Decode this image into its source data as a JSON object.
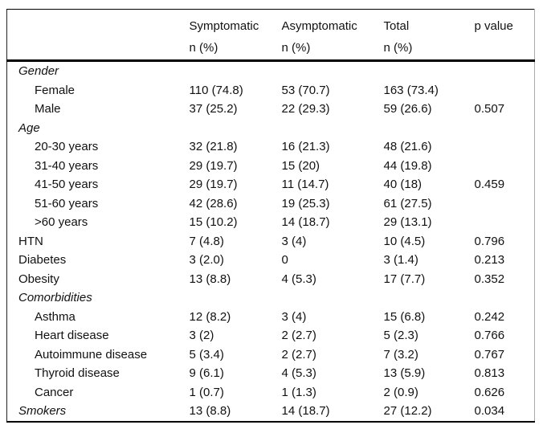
{
  "colors": {
    "background": "#ffffff",
    "text": "#111111",
    "rule": "#000000"
  },
  "table": {
    "columns": [
      {
        "line1": "",
        "line2": ""
      },
      {
        "line1": "Symptomatic",
        "line2": "n (%)"
      },
      {
        "line1": "Asymptomatic",
        "line2": "n (%)"
      },
      {
        "line1": "Total",
        "line2": "n (%)"
      },
      {
        "line1": "p value",
        "line2": ""
      }
    ],
    "rows": [
      {
        "type": "section",
        "cells": [
          "Gender",
          "",
          "",
          "",
          ""
        ]
      },
      {
        "type": "item",
        "cells": [
          "Female",
          "110 (74.8)",
          "53 (70.7)",
          "163 (73.4)",
          ""
        ]
      },
      {
        "type": "item",
        "cells": [
          "Male",
          "37 (25.2)",
          "22 (29.3)",
          "59 (26.6)",
          "0.507"
        ]
      },
      {
        "type": "section",
        "cells": [
          "Age",
          "",
          "",
          "",
          ""
        ]
      },
      {
        "type": "item",
        "cells": [
          "20-30 years",
          "32 (21.8)",
          "16 (21.3)",
          "48 (21.6)",
          ""
        ]
      },
      {
        "type": "item",
        "cells": [
          "31-40 years",
          "29 (19.7)",
          "15 (20)",
          "44 (19.8)",
          ""
        ]
      },
      {
        "type": "item",
        "cells": [
          "41-50 years",
          "29 (19.7)",
          "11 (14.7)",
          "40 (18)",
          "0.459"
        ]
      },
      {
        "type": "item",
        "cells": [
          "51-60 years",
          "42 (28.6)",
          "19 (25.3)",
          "61 (27.5)",
          ""
        ]
      },
      {
        "type": "item",
        "cells": [
          ">60 years",
          "15 (10.2)",
          "14 (18.7)",
          "29 (13.1)",
          ""
        ]
      },
      {
        "type": "plain",
        "cells": [
          "HTN",
          "7 (4.8)",
          "3 (4)",
          "10 (4.5)",
          "0.796"
        ]
      },
      {
        "type": "plain",
        "cells": [
          "Diabetes",
          "3 (2.0)",
          "0",
          "3 (1.4)",
          "0.213"
        ]
      },
      {
        "type": "plain",
        "cells": [
          "Obesity",
          "13 (8.8)",
          "4 (5.3)",
          "17 (7.7)",
          "0.352"
        ]
      },
      {
        "type": "section",
        "cells": [
          "Comorbidities",
          "",
          "",
          "",
          ""
        ]
      },
      {
        "type": "item",
        "cells": [
          "Asthma",
          "12 (8.2)",
          "3 (4)",
          "15 (6.8)",
          "0.242"
        ]
      },
      {
        "type": "item",
        "cells": [
          "Heart disease",
          "3 (2)",
          "2 (2.7)",
          "5 (2.3)",
          "0.766"
        ]
      },
      {
        "type": "item",
        "cells": [
          "Autoimmune disease",
          "5 (3.4)",
          "2 (2.7)",
          "7 (3.2)",
          "0.767"
        ]
      },
      {
        "type": "item",
        "cells": [
          "Thyroid disease",
          "9 (6.1)",
          "4 (5.3)",
          "13 (5.9)",
          "0.813"
        ]
      },
      {
        "type": "item",
        "cells": [
          "Cancer",
          "1 (0.7)",
          "1 (1.3)",
          "2 (0.9)",
          "0.626"
        ]
      },
      {
        "type": "section",
        "cells": [
          "Smokers",
          "13 (8.8)",
          "14 (18.7)",
          "27 (12.2)",
          "0.034"
        ]
      }
    ]
  }
}
